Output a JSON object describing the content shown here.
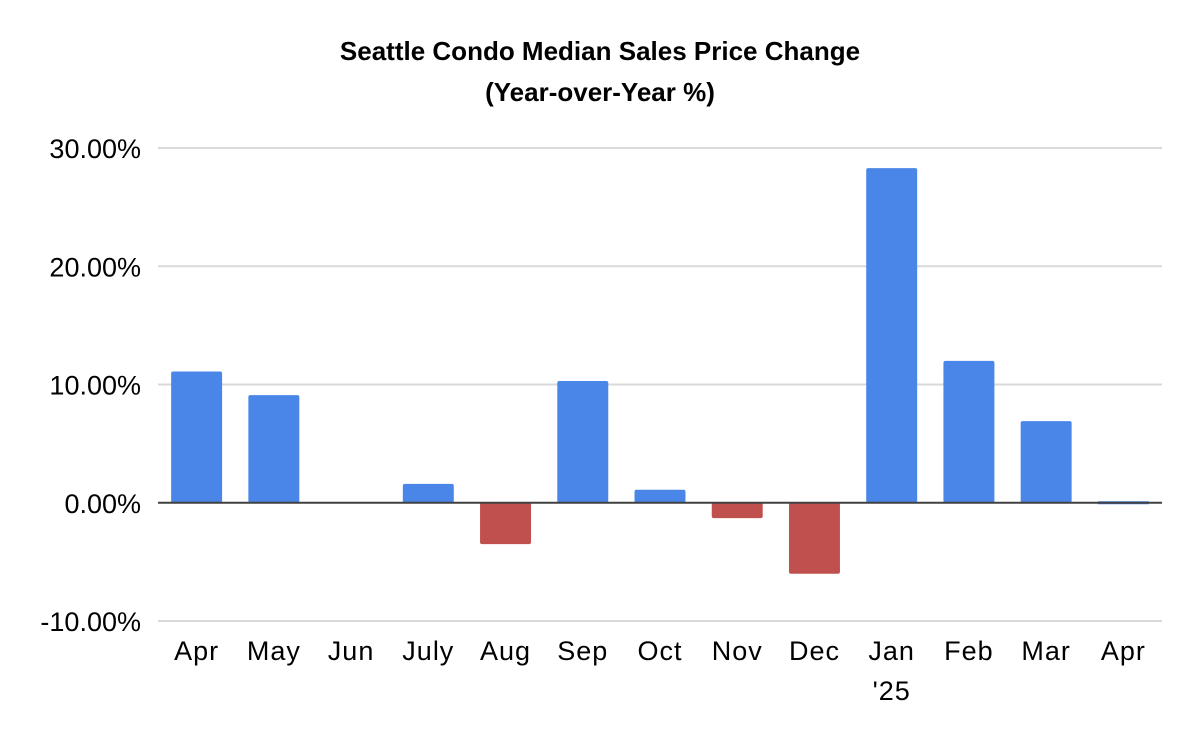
{
  "chart_data": {
    "type": "bar",
    "title": "Seattle Condo Median Sales Price Change",
    "subtitle": "(Year-over-Year %)",
    "categories": [
      "Apr",
      "May",
      "Jun",
      "July",
      "Aug",
      "Sep",
      "Oct",
      "Nov",
      "Dec",
      "Jan",
      "Feb",
      "Mar",
      "Apr"
    ],
    "category_sublabels": [
      "",
      "",
      "",
      "",
      "",
      "",
      "",
      "",
      "",
      "'25",
      "",
      "",
      ""
    ],
    "values": [
      11.1,
      9.1,
      0.0,
      1.6,
      -3.5,
      10.3,
      1.1,
      -1.3,
      -6.0,
      28.3,
      12.0,
      6.9,
      0.0
    ],
    "ylim": [
      -10,
      30
    ],
    "yticks": [
      30,
      20,
      10,
      0,
      -10
    ],
    "ytick_labels": [
      "30.00%",
      "20.00%",
      "10.00%",
      "0.00%",
      "-10.00%"
    ],
    "grid": true,
    "colors": {
      "positive": "#4a86e8",
      "negative": "#c0504d"
    },
    "xlabel": "",
    "ylabel": ""
  }
}
